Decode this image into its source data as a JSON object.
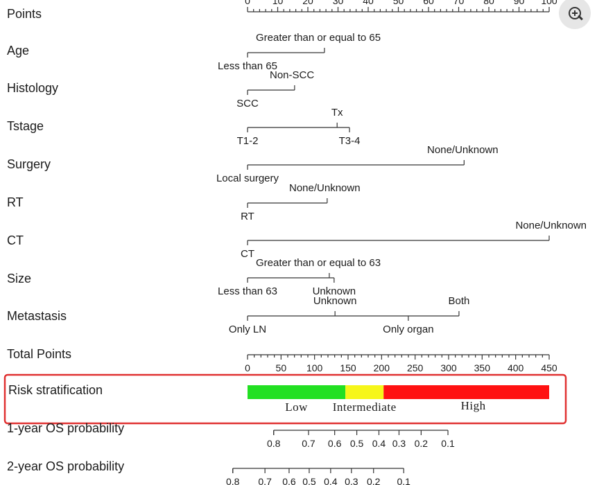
{
  "chart_data": {
    "type": "nomogram",
    "points_axis": {
      "label": "Points",
      "ticks": [
        0,
        10,
        20,
        30,
        40,
        50,
        60,
        70,
        80,
        90,
        100
      ],
      "tick_labels": [
        "0",
        "10",
        "20",
        "30",
        "40",
        "50",
        "60",
        "70",
        "80",
        "90",
        "100"
      ],
      "range": [
        0,
        100
      ]
    },
    "variables": [
      {
        "name": "Age",
        "levels": [
          {
            "label": "Less than 65",
            "points": 0,
            "side": "below"
          },
          {
            "label": "Greater than or equal to 65",
            "points": 25.5,
            "side": "above"
          }
        ]
      },
      {
        "name": "Histology",
        "levels": [
          {
            "label": "SCC",
            "points": 0,
            "side": "below"
          },
          {
            "label": "Non-SCC",
            "points": 15.6,
            "side": "above"
          }
        ]
      },
      {
        "name": "Tstage",
        "levels": [
          {
            "label": "T1-2",
            "points": 0,
            "side": "below"
          },
          {
            "label": "Tx",
            "points": 29.7,
            "side": "above"
          },
          {
            "label": "T3-4",
            "points": 33.8,
            "side": "below"
          }
        ]
      },
      {
        "name": "Surgery",
        "levels": [
          {
            "label": "Local surgery",
            "points": 0,
            "side": "below"
          },
          {
            "label": "None/Unknown",
            "points": 71.8,
            "side": "above"
          }
        ]
      },
      {
        "name": "RT",
        "levels": [
          {
            "label": "RT",
            "points": 0,
            "side": "below"
          },
          {
            "label": "None/Unknown",
            "points": 26.4,
            "side": "above"
          }
        ]
      },
      {
        "name": "CT",
        "levels": [
          {
            "label": "CT",
            "points": 0,
            "side": "below"
          },
          {
            "label": "None/Unknown",
            "points": 100,
            "side": "above"
          }
        ]
      },
      {
        "name": "Size",
        "levels": [
          {
            "label": "Less than 63",
            "points": 0,
            "side": "below"
          },
          {
            "label": "Greater than or equal to 63",
            "points": 27.1,
            "side": "above"
          },
          {
            "label": "Unknown",
            "points": 28.7,
            "side": "below"
          }
        ]
      },
      {
        "name": "Metastasis",
        "levels": [
          {
            "label": "Only LN",
            "points": 0,
            "side": "below"
          },
          {
            "label": "Unknown",
            "points": 29.0,
            "side": "above"
          },
          {
            "label": "Only organ",
            "points": 53.3,
            "side": "below"
          },
          {
            "label": "Both",
            "points": 70.1,
            "side": "above"
          }
        ]
      }
    ],
    "total_points_axis": {
      "label": "Total Points",
      "ticks": [
        0,
        50,
        100,
        150,
        200,
        250,
        300,
        350,
        400,
        450
      ],
      "tick_labels": [
        "0",
        "50",
        "100",
        "150",
        "200",
        "250",
        "300",
        "350",
        "400",
        "450"
      ],
      "range": [
        0,
        450
      ]
    },
    "risk_stratification": {
      "label": "Risk stratification",
      "bands": [
        {
          "label": "Low",
          "from": 0,
          "to": 146,
          "color": "#22e022"
        },
        {
          "label": "Intermediate",
          "from": 146,
          "to": 203,
          "color": "#f6f61a"
        },
        {
          "label": "High",
          "from": 203,
          "to": 450,
          "color": "#ff1111"
        }
      ],
      "highlight_color": "#e03030"
    },
    "prob_axes": [
      {
        "label": "1-year OS probability",
        "ticks": [
          {
            "label": "0.8",
            "total": 39
          },
          {
            "label": "0.7",
            "total": 91
          },
          {
            "label": "0.6",
            "total": 130
          },
          {
            "label": "0.5",
            "total": 163
          },
          {
            "label": "0.4",
            "total": 196
          },
          {
            "label": "0.3",
            "total": 226
          },
          {
            "label": "0.2",
            "total": 259
          },
          {
            "label": "0.1",
            "total": 299
          }
        ],
        "range": [
          39,
          299
        ]
      },
      {
        "label": "2-year OS probability",
        "ticks": [
          {
            "label": "0.8",
            "total": -22
          },
          {
            "label": "0.7",
            "total": 26
          },
          {
            "label": "0.6",
            "total": 62
          },
          {
            "label": "0.5",
            "total": 92
          },
          {
            "label": "0.4",
            "total": 124
          },
          {
            "label": "0.3",
            "total": 155
          },
          {
            "label": "0.2",
            "total": 188
          },
          {
            "label": "0.1",
            "total": 233
          }
        ],
        "range": [
          -22,
          233
        ]
      }
    ]
  },
  "ui": {
    "zoom_icon": "zoom-in-icon"
  }
}
